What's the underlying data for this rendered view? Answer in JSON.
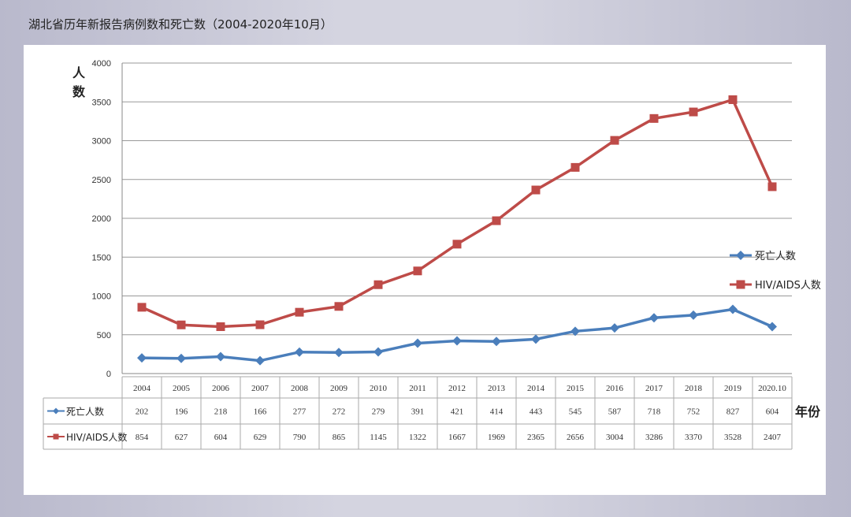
{
  "title": "湖北省历年新报告病例数和死亡数（2004-2020年10月）",
  "chart_data": {
    "type": "line",
    "title": "湖北省历年新报告病例数和死亡数（2004-2020年10月）",
    "xlabel": "年份",
    "ylabel": "人数",
    "ylim": [
      0,
      4000
    ],
    "yticks": [
      0,
      500,
      1000,
      1500,
      2000,
      2500,
      3000,
      3500,
      4000
    ],
    "grid": true,
    "legend": "right",
    "categories": [
      "2004",
      "2005",
      "2006",
      "2007",
      "2008",
      "2009",
      "2010",
      "2011",
      "2012",
      "2013",
      "2014",
      "2015",
      "2016",
      "2017",
      "2018",
      "2019",
      "2020.10"
    ],
    "series": [
      {
        "name": "死亡人数",
        "color": "#4a7ebb",
        "marker": "diamond",
        "values": [
          202,
          196,
          218,
          166,
          277,
          272,
          279,
          391,
          421,
          414,
          443,
          545,
          587,
          718,
          752,
          827,
          604
        ]
      },
      {
        "name": "HIV/AIDS人数",
        "color": "#be4b48",
        "marker": "square",
        "values": [
          854,
          627,
          604,
          629,
          790,
          865,
          1145,
          1322,
          1667,
          1969,
          2365,
          2656,
          3004,
          3286,
          3370,
          3528,
          2407
        ]
      }
    ]
  }
}
